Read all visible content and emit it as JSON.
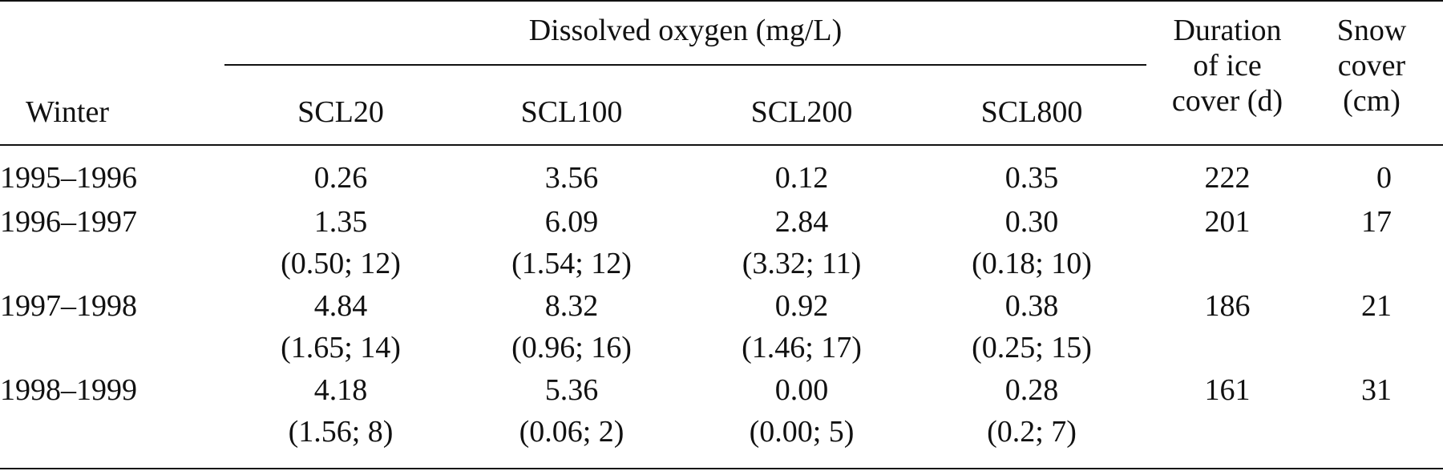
{
  "header": {
    "spanning_label": "Dissolved oxygen (mg/L)",
    "winter_label": "Winter",
    "duration_label_lines": [
      "Duration",
      "of ice",
      "cover (d)"
    ],
    "snow_label_lines": [
      "Snow",
      "cover",
      "(cm)"
    ],
    "columns": [
      "SCL20",
      "SCL100",
      "SCL200",
      "SCL800"
    ]
  },
  "rows": [
    {
      "winter": "1995–1996",
      "values": [
        "0.26",
        "3.56",
        "0.12",
        "0.35"
      ],
      "details": [
        "",
        "",
        "",
        ""
      ],
      "duration": "222",
      "snow": "0"
    },
    {
      "winter": "1996–1997",
      "values": [
        "1.35",
        "6.09",
        "2.84",
        "0.30"
      ],
      "details": [
        "(0.50; 12)",
        "(1.54; 12)",
        "(3.32; 11)",
        "(0.18; 10)"
      ],
      "duration": "201",
      "snow": "17"
    },
    {
      "winter": "1997–1998",
      "values": [
        "4.84",
        "8.32",
        "0.92",
        "0.38"
      ],
      "details": [
        "(1.65; 14)",
        "(0.96; 16)",
        "(1.46; 17)",
        "(0.25; 15)"
      ],
      "duration": "186",
      "snow": "21"
    },
    {
      "winter": "1998–1999",
      "values": [
        "4.18",
        "5.36",
        "0.00",
        "0.28"
      ],
      "details": [
        "(1.56; 8)",
        "(0.06; 2)",
        "(0.00; 5)",
        "(0.2; 7)"
      ],
      "duration": "161",
      "snow": "31"
    }
  ]
}
